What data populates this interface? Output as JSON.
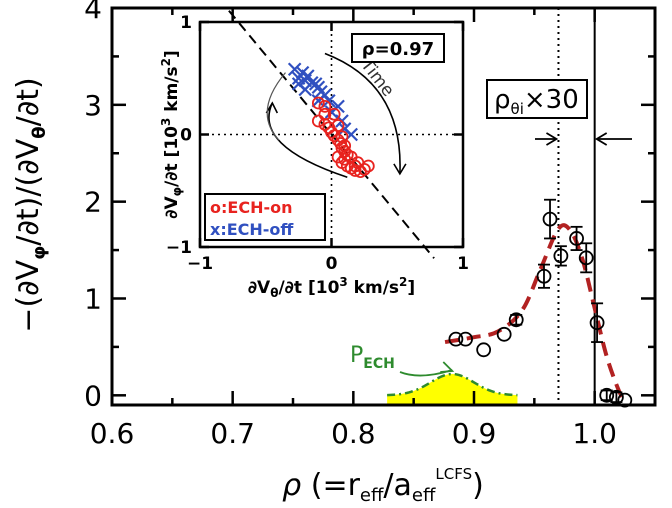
{
  "chart_data": {
    "type": "scatter",
    "xlabel": "ρ (=r",
    "xlabel_parts": {
      "rho": "ρ",
      "open": " (=r",
      "sub1": "eff",
      "slash": "/a",
      "sub2": "eff",
      "sup": "LCFS",
      "close": ")"
    },
    "ylabel_parts": {
      "a": "−(∂V",
      "sub1": "φ",
      "b": "/∂t)/(∂V",
      "sub2": "θ",
      "c": "/∂t)"
    },
    "xlim": [
      0.6,
      1.05
    ],
    "ylim": [
      -0.1,
      4
    ],
    "xticks": [
      0.6,
      0.7,
      0.8,
      0.9,
      1.0
    ],
    "xtick_labels": [
      "0.6",
      "0.7",
      "0.8",
      "0.9",
      "1.0"
    ],
    "yticks": [
      0,
      1,
      2,
      3,
      4
    ],
    "ytick_labels": [
      "0",
      "1",
      "2",
      "3",
      "4"
    ],
    "series": [
      {
        "points": [
          {
            "x": 0.885,
            "y": 0.58,
            "err": 0
          },
          {
            "x": 0.893,
            "y": 0.58,
            "err": 0
          },
          {
            "x": 0.908,
            "y": 0.47,
            "err": 0
          },
          {
            "x": 0.925,
            "y": 0.63,
            "err": 0
          },
          {
            "x": 0.935,
            "y": 0.78,
            "err": 0.05
          },
          {
            "x": 0.958,
            "y": 1.23,
            "err": 0.12
          },
          {
            "x": 0.963,
            "y": 1.82,
            "err": 0.2
          },
          {
            "x": 0.972,
            "y": 1.44,
            "err": 0.1
          },
          {
            "x": 0.985,
            "y": 1.62,
            "err": 0.12
          },
          {
            "x": 0.993,
            "y": 1.42,
            "err": 0.15
          },
          {
            "x": 1.002,
            "y": 0.75,
            "err": 0.2
          },
          {
            "x": 1.01,
            "y": 0.0,
            "err": 0.05
          },
          {
            "x": 1.018,
            "y": -0.02,
            "err": 0.05
          },
          {
            "x": 1.025,
            "y": -0.05,
            "err": 0
          }
        ]
      }
    ],
    "fit_curve": {
      "color": "#b22222",
      "points": [
        [
          0.876,
          0.55
        ],
        [
          0.9,
          0.6
        ],
        [
          0.92,
          0.66
        ],
        [
          0.94,
          0.88
        ],
        [
          0.955,
          1.3
        ],
        [
          0.97,
          1.72
        ],
        [
          0.98,
          1.7
        ],
        [
          0.99,
          1.4
        ],
        [
          1.0,
          0.9
        ],
        [
          1.01,
          0.4
        ],
        [
          1.02,
          0.05
        ],
        [
          1.025,
          -0.05
        ]
      ]
    },
    "pech": {
      "label": "P",
      "label_sub": "ECH",
      "center": 0.882,
      "width": 0.018,
      "height": 0.22,
      "fill_color": "#ffff00",
      "line_color": "#2e8b2e"
    },
    "vlines": [
      {
        "x": 0.97,
        "style": "dotted"
      },
      {
        "x": 1.0,
        "style": "solid"
      }
    ],
    "annotation": {
      "text_rho": "ρ",
      "text_sub": "θi",
      "text_mult": "×30"
    },
    "inset": {
      "type": "scatter",
      "title": "ρ=0.97",
      "xlabel_parts": {
        "a": "∂V",
        "sub": "θ",
        "b": "/∂t [10",
        "sup": "3",
        "c": " km/s",
        "sup2": "2",
        "d": "]"
      },
      "ylabel_parts": {
        "a": "∂V",
        "sub": "φ",
        "b": "/∂t [10",
        "sup": "3",
        "c": " km/s",
        "sup2": "2",
        "d": "]"
      },
      "xlim": [
        -1,
        1
      ],
      "ylim": [
        -1,
        1
      ],
      "xticks": [
        -1,
        0,
        1
      ],
      "xtick_labels": [
        "−1",
        "0",
        "1"
      ],
      "yticks": [
        -1,
        0,
        1
      ],
      "ytick_labels": [
        "−1",
        "0",
        "1"
      ],
      "time_label": "Time",
      "legend": [
        {
          "marker": "o",
          "label": "o:ECH-on",
          "color": "#e8231f"
        },
        {
          "marker": "x",
          "label": "x:ECH-off",
          "color": "#3050c0"
        }
      ],
      "ech_on": [
        [
          -0.1,
          0.12
        ],
        [
          -0.05,
          0.09
        ],
        [
          -0.02,
          0.06
        ],
        [
          0.0,
          0.02
        ],
        [
          0.02,
          -0.01
        ],
        [
          0.05,
          -0.05
        ],
        [
          0.07,
          -0.08
        ],
        [
          0.08,
          -0.12
        ],
        [
          0.1,
          -0.15
        ],
        [
          0.12,
          -0.18
        ],
        [
          0.05,
          -0.2
        ],
        [
          0.1,
          -0.22
        ],
        [
          0.08,
          -0.25
        ],
        [
          0.12,
          -0.28
        ],
        [
          0.15,
          -0.3
        ],
        [
          0.18,
          -0.32
        ],
        [
          0.22,
          -0.33
        ],
        [
          0.25,
          -0.31
        ],
        [
          0.28,
          -0.28
        ],
        [
          -0.05,
          0.18
        ],
        [
          -0.1,
          0.28
        ],
        [
          -0.05,
          0.25
        ],
        [
          0.02,
          0.18
        ],
        [
          0.05,
          0.08
        ],
        [
          0.08,
          -0.02
        ],
        [
          0.1,
          -0.1
        ],
        [
          0.15,
          -0.2
        ],
        [
          0.2,
          -0.25
        ],
        [
          0.18,
          -0.28
        ]
      ],
      "ech_off": [
        [
          -0.28,
          0.58
        ],
        [
          -0.25,
          0.5
        ],
        [
          -0.22,
          0.55
        ],
        [
          -0.2,
          0.48
        ],
        [
          -0.18,
          0.52
        ],
        [
          -0.15,
          0.46
        ],
        [
          -0.12,
          0.45
        ],
        [
          -0.1,
          0.42
        ],
        [
          -0.08,
          0.38
        ],
        [
          -0.05,
          0.35
        ],
        [
          -0.02,
          0.3
        ],
        [
          0.05,
          0.25
        ],
        [
          0.1,
          0.05
        ],
        [
          0.15,
          0.0
        ],
        [
          -0.25,
          0.45
        ],
        [
          -0.2,
          0.4
        ],
        [
          -0.1,
          0.3
        ],
        [
          0.0,
          0.2
        ],
        [
          0.08,
          0.12
        ]
      ],
      "fit_line": [
        [
          -0.78,
          1.1
        ],
        [
          0.78,
          -1.1
        ]
      ],
      "dotted_lines": true
    }
  }
}
